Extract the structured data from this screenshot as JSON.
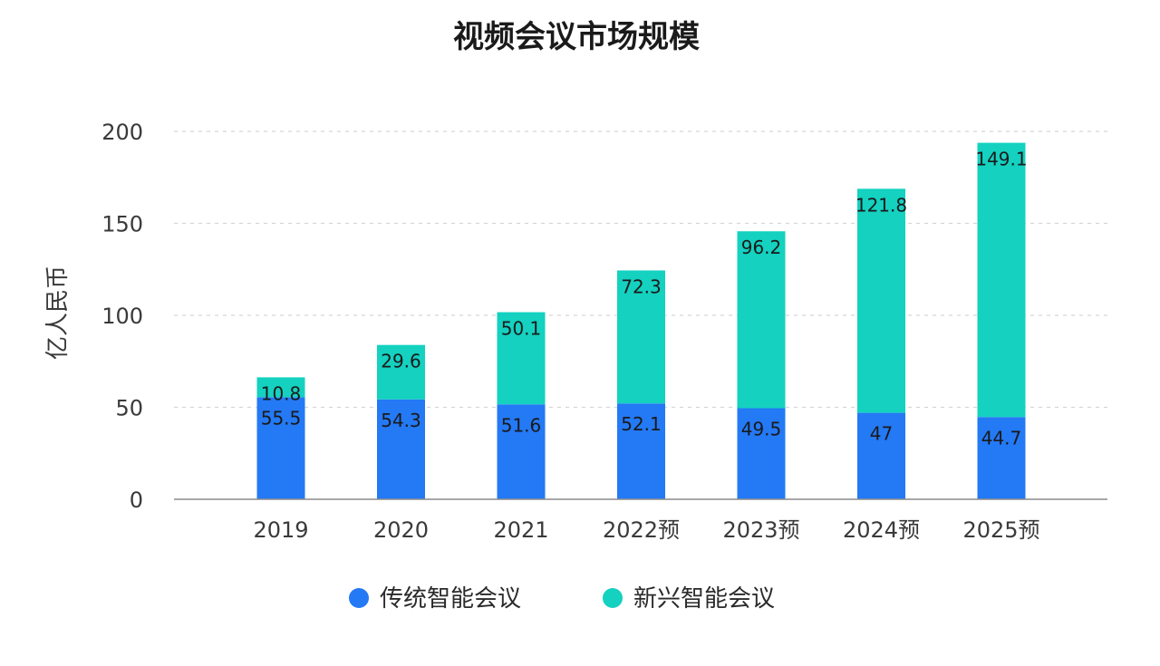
{
  "chart_data": {
    "type": "bar",
    "stacked": true,
    "title": "视频会议市场规模",
    "xlabel": "",
    "ylabel": "亿人民币",
    "ylim": [
      0,
      200
    ],
    "yticks": [
      0,
      50,
      100,
      150,
      200
    ],
    "grid": true,
    "legend_position": "bottom",
    "categories": [
      "2019",
      "2020",
      "2021",
      "2022预",
      "2023预",
      "2024预",
      "2025预"
    ],
    "series": [
      {
        "name": "传统智能会议",
        "color": "#2479f5",
        "values": [
          55.5,
          54.3,
          51.6,
          52.1,
          49.5,
          47,
          44.7
        ],
        "labels": [
          "55.5",
          "54.3",
          "51.6",
          "52.1",
          "49.5",
          "47",
          "44.7"
        ]
      },
      {
        "name": "新兴智能会议",
        "color": "#14d1c0",
        "values": [
          10.8,
          29.6,
          50.1,
          72.3,
          96.2,
          121.8,
          149.1
        ],
        "labels": [
          "10.8",
          "29.6",
          "50.1",
          "72.3",
          "96.2",
          "121.8",
          "149.1"
        ]
      }
    ]
  }
}
